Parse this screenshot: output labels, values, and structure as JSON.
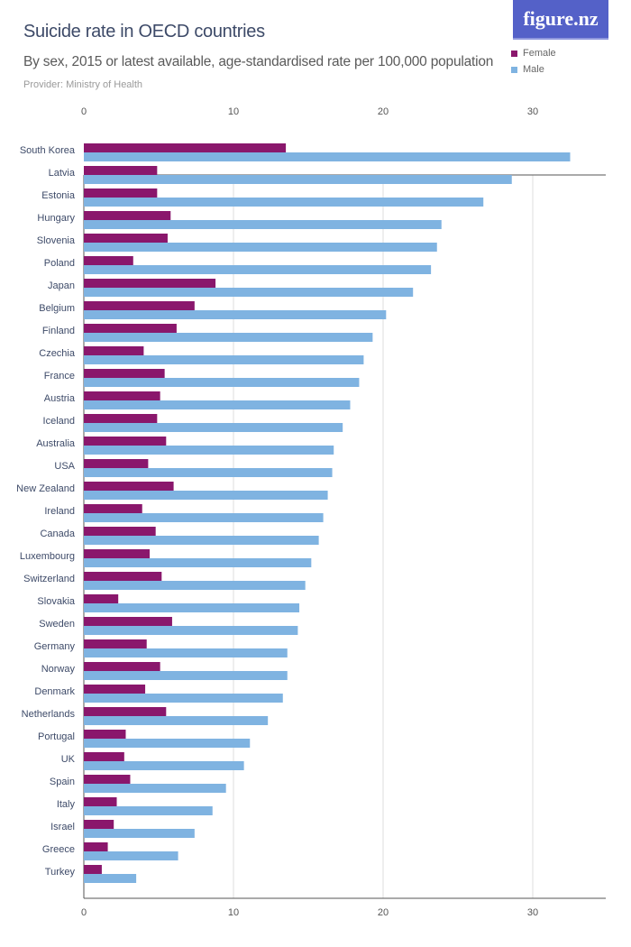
{
  "logo": "figure.nz",
  "colors": {
    "Female": "#8a176c",
    "Male": "#7fb3e1",
    "grid": "#dddddd",
    "axis": "#555555"
  },
  "chart_data": {
    "type": "bar",
    "orientation": "horizontal",
    "title": "Suicide rate in OECD countries",
    "subtitle": "By sex, 2015 or latest available, age-standardised rate per 100,000 population",
    "provider": "Provider: Ministry of Health",
    "legend_position": "top-right",
    "grid": true,
    "xlim": [
      0,
      35
    ],
    "xticks": [
      0,
      10,
      20,
      30
    ],
    "categories": [
      "South Korea",
      "Latvia",
      "Estonia",
      "Hungary",
      "Slovenia",
      "Poland",
      "Japan",
      "Belgium",
      "Finland",
      "Czechia",
      "France",
      "Austria",
      "Iceland",
      "Australia",
      "USA",
      "New Zealand",
      "Ireland",
      "Canada",
      "Luxembourg",
      "Switzerland",
      "Slovakia",
      "Sweden",
      "Germany",
      "Norway",
      "Denmark",
      "Netherlands",
      "Portugal",
      "UK",
      "Spain",
      "Italy",
      "Israel",
      "Greece",
      "Turkey"
    ],
    "series": [
      {
        "name": "Female",
        "values": [
          13.5,
          4.9,
          4.9,
          5.8,
          5.6,
          3.3,
          8.8,
          7.4,
          6.2,
          4.0,
          5.4,
          5.1,
          4.9,
          5.5,
          4.3,
          6.0,
          3.9,
          4.8,
          4.4,
          5.2,
          2.3,
          5.9,
          4.2,
          5.1,
          4.1,
          5.5,
          2.8,
          2.7,
          3.1,
          2.2,
          2.0,
          1.6,
          1.2
        ]
      },
      {
        "name": "Male",
        "values": [
          32.5,
          28.6,
          26.7,
          23.9,
          23.6,
          23.2,
          22.0,
          20.2,
          19.3,
          18.7,
          18.4,
          17.8,
          17.3,
          16.7,
          16.6,
          16.3,
          16.0,
          15.7,
          15.2,
          14.8,
          14.4,
          14.3,
          13.6,
          13.6,
          13.3,
          12.3,
          11.1,
          10.7,
          9.5,
          8.6,
          7.4,
          6.3,
          3.5
        ]
      }
    ]
  }
}
